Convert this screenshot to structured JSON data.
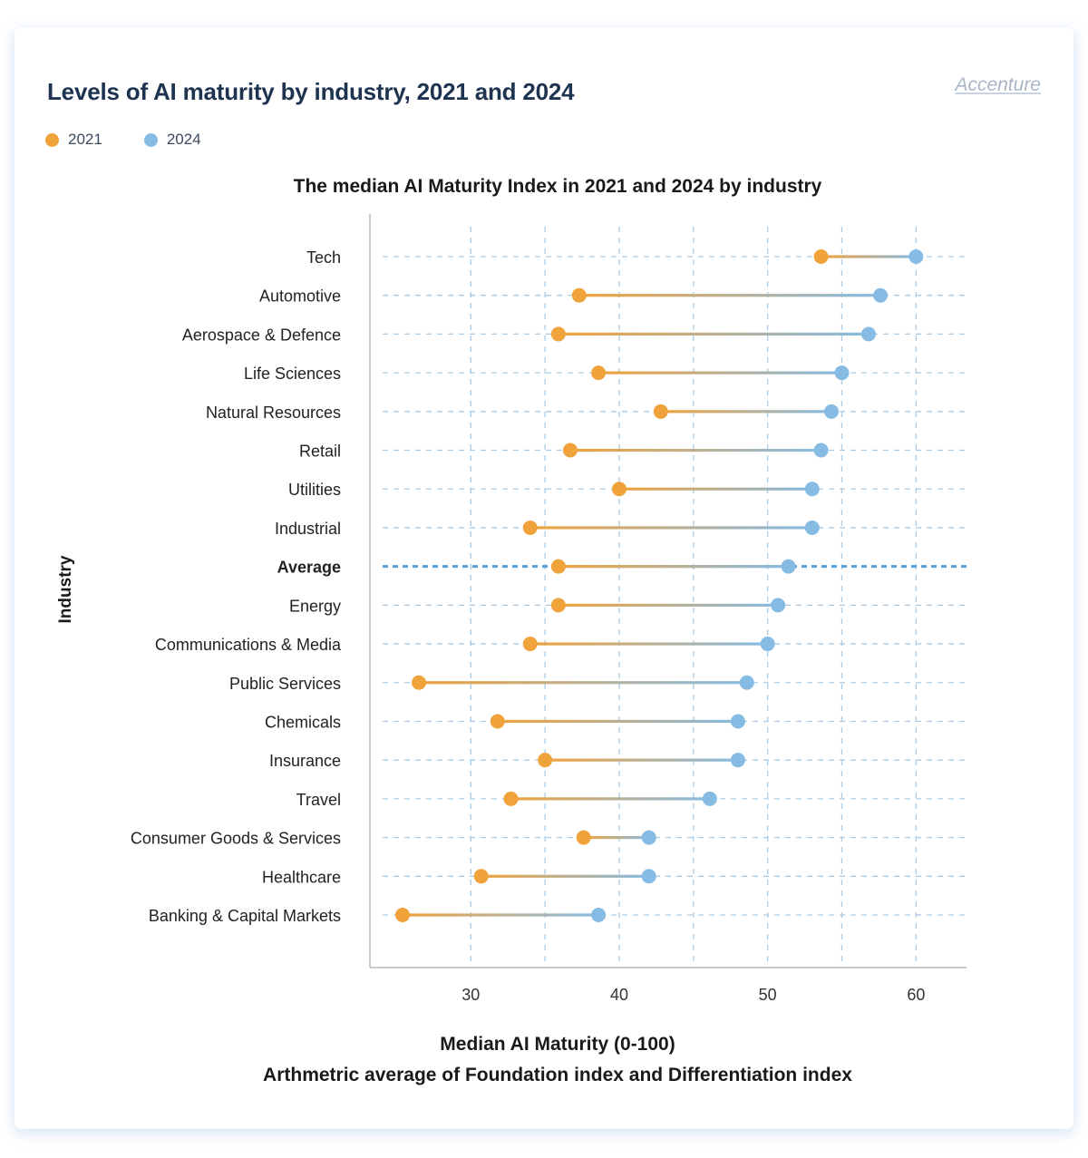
{
  "header": {
    "title": "Levels of AI maturity by industry, 2021 and 2024",
    "brand": "Accenture"
  },
  "legend": [
    {
      "label": "2021",
      "color": "#f0a23b"
    },
    {
      "label": "2024",
      "color": "#86bbe3"
    }
  ],
  "chart_data": {
    "type": "dumbbell",
    "title": "The median AI Maturity Index in 2021 and 2024 by industry",
    "ylabel": "Industry",
    "xlabel": "Median AI Maturity (0-100)",
    "xlabel2": "Arthmetric average of Foundation index and Differentiation index",
    "xlim": [
      23.2,
      63.4
    ],
    "xticks": [
      30,
      40,
      50,
      60
    ],
    "grid": true,
    "legend_placement": "top-left",
    "categories": [
      "Tech",
      "Automotive",
      "Aerospace & Defence",
      "Life Sciences",
      "Natural Resources",
      "Retail",
      "Utilities",
      "Industrial",
      "Average",
      "Energy",
      "Communications & Media",
      "Public Services",
      "Chemicals",
      "Insurance",
      "Travel",
      "Consumer Goods & Services",
      "Healthcare",
      "Banking & Capital Markets"
    ],
    "highlight": "Average",
    "series": [
      {
        "name": "2021",
        "color": "#f0a23b",
        "values": [
          53.6,
          37.3,
          35.9,
          38.6,
          42.8,
          36.7,
          40.0,
          34.0,
          35.9,
          35.9,
          34.0,
          26.5,
          31.8,
          35.0,
          32.7,
          37.6,
          30.7,
          25.4
        ]
      },
      {
        "name": "2024",
        "color": "#86bbe3",
        "values": [
          60.0,
          57.6,
          56.8,
          55.0,
          54.3,
          53.6,
          53.0,
          53.0,
          51.4,
          50.7,
          50.0,
          48.6,
          48.0,
          48.0,
          46.1,
          42.0,
          42.0,
          38.6
        ]
      }
    ]
  }
}
